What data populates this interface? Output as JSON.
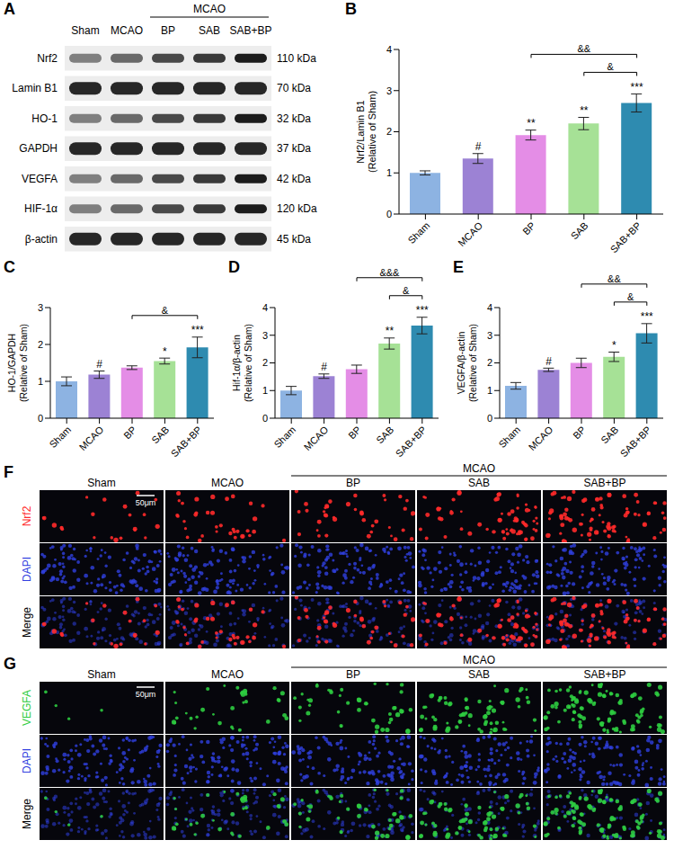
{
  "blot": {
    "panel": "A",
    "treatment_header": "MCAO",
    "groups": [
      "Sham",
      "MCAO",
      "BP",
      "SAB",
      "SAB+BP"
    ],
    "rows": [
      {
        "protein": "Nrf2",
        "size": "110 kDa"
      },
      {
        "protein": "Lamin B1",
        "size": "70 kDa"
      },
      {
        "protein": "HO-1",
        "size": "32 kDa"
      },
      {
        "protein": "GAPDH",
        "size": "37 kDa"
      },
      {
        "protein": "VEGFA",
        "size": "42 kDa"
      },
      {
        "protein": "HIF-1α",
        "size": "120 kDa"
      },
      {
        "protein": "β-actin",
        "size": "45 kDa"
      }
    ]
  },
  "chart_data": [
    {
      "type": "bar",
      "panel": "B",
      "y_label": [
        "Nrf2/Lamin B1",
        "(Relative of Sham)"
      ],
      "categories": [
        "Sham",
        "MCAO",
        "BP",
        "SAB",
        "SAB+BP"
      ],
      "values": [
        1.0,
        1.35,
        1.92,
        2.2,
        2.7
      ],
      "errors": [
        0.05,
        0.12,
        0.12,
        0.15,
        0.22
      ],
      "colors": [
        "#8db3e2",
        "#9c82d4",
        "#e48de6",
        "#a6e196",
        "#2e8bb0"
      ],
      "ylim": [
        0,
        4
      ],
      "yticks": [
        0,
        1,
        2,
        3,
        4
      ],
      "significance": [
        null,
        "#",
        "**",
        "**",
        "***"
      ],
      "comparisons": [
        {
          "from": "SAB",
          "to": "SAB+BP",
          "label": "&"
        },
        {
          "from": "BP",
          "to": "SAB+BP",
          "label": "&&"
        }
      ]
    },
    {
      "type": "bar",
      "panel": "C",
      "y_label": [
        "HO-1/GAPDH",
        "(Relative of Sham)"
      ],
      "categories": [
        "Sham",
        "MCAO",
        "BP",
        "SAB",
        "SAB+BP"
      ],
      "values": [
        1.0,
        1.18,
        1.37,
        1.55,
        1.92
      ],
      "errors": [
        0.12,
        0.1,
        0.05,
        0.08,
        0.28
      ],
      "colors": [
        "#8db3e2",
        "#9c82d4",
        "#e48de6",
        "#a6e196",
        "#2e8bb0"
      ],
      "ylim": [
        0,
        3
      ],
      "yticks": [
        0,
        1,
        2,
        3
      ],
      "significance": [
        null,
        "#",
        null,
        "*",
        "***"
      ],
      "comparisons": [
        {
          "from": "BP",
          "to": "SAB+BP",
          "label": "&"
        }
      ]
    },
    {
      "type": "bar",
      "panel": "D",
      "y_label": [
        "Hif-1α/β-actin",
        "(Relative of Sham)"
      ],
      "categories": [
        "Sham",
        "MCAO",
        "BP",
        "SAB",
        "SAB+BP"
      ],
      "values": [
        1.0,
        1.52,
        1.77,
        2.7,
        3.35
      ],
      "errors": [
        0.15,
        0.08,
        0.15,
        0.2,
        0.3
      ],
      "colors": [
        "#8db3e2",
        "#9c82d4",
        "#e48de6",
        "#a6e196",
        "#2e8bb0"
      ],
      "ylim": [
        0,
        4
      ],
      "yticks": [
        0,
        1,
        2,
        3,
        4
      ],
      "significance": [
        null,
        "#",
        null,
        "**",
        "***"
      ],
      "comparisons": [
        {
          "from": "SAB",
          "to": "SAB+BP",
          "label": "&"
        },
        {
          "from": "BP",
          "to": "SAB+BP",
          "label": "&&&"
        }
      ]
    },
    {
      "type": "bar",
      "panel": "E",
      "y_label": [
        "VEGFA/β-actin",
        "(Relative of Sham)"
      ],
      "categories": [
        "Sham",
        "MCAO",
        "BP",
        "SAB",
        "SAB+BP"
      ],
      "values": [
        1.17,
        1.75,
        2.0,
        2.22,
        3.07
      ],
      "errors": [
        0.12,
        0.06,
        0.17,
        0.17,
        0.35
      ],
      "colors": [
        "#8db3e2",
        "#9c82d4",
        "#e48de6",
        "#a6e196",
        "#2e8bb0"
      ],
      "ylim": [
        0,
        4
      ],
      "yticks": [
        0,
        1,
        2,
        3,
        4
      ],
      "significance": [
        null,
        "#",
        null,
        "*",
        "***"
      ],
      "comparisons": [
        {
          "from": "SAB",
          "to": "SAB+BP",
          "label": "&"
        },
        {
          "from": "BP",
          "to": "SAB+BP",
          "label": "&&"
        }
      ]
    }
  ],
  "immunofluorescence": [
    {
      "panel": "F",
      "treatment_header": "MCAO",
      "columns": [
        "Sham",
        "MCAO",
        "BP",
        "SAB",
        "SAB+BP"
      ],
      "rows": [
        "Nrf2",
        "DAPI",
        "Merge"
      ],
      "colors": [
        "#ff2a2a",
        "#3040e0",
        "#000000"
      ],
      "scale_bar": "50μm"
    },
    {
      "panel": "G",
      "treatment_header": "MCAO",
      "columns": [
        "Sham",
        "MCAO",
        "BP",
        "SAB",
        "SAB+BP"
      ],
      "rows": [
        "VEGFA",
        "DAPI",
        "Merge"
      ],
      "colors": [
        "#2ecc40",
        "#3040e0",
        "#000000"
      ],
      "scale_bar": "50μm"
    }
  ]
}
